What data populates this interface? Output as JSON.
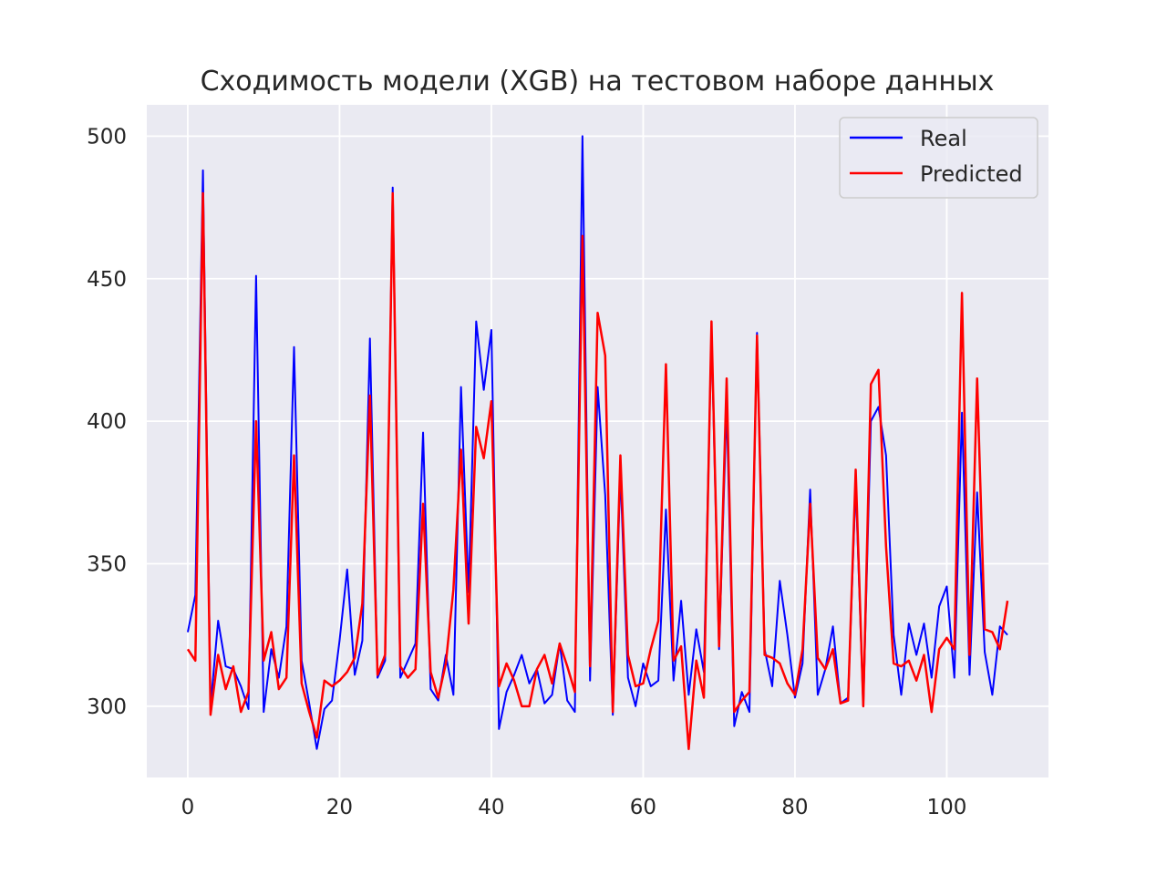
{
  "chart_data": {
    "type": "line",
    "title": "Сходимость модели (XGB) на тестовом наборе данных",
    "xlabel": "",
    "ylabel": "",
    "xlim": [
      -5.4,
      113.4
    ],
    "ylim": [
      275,
      511
    ],
    "xticks": [
      0,
      20,
      40,
      60,
      80,
      100
    ],
    "yticks": [
      300,
      350,
      400,
      450,
      500
    ],
    "grid": true,
    "legend_position": "top-right",
    "series": [
      {
        "name": "Real",
        "color": "#0000ff",
        "values": [
          326,
          339,
          488,
          300,
          330,
          314,
          313,
          307,
          299,
          451,
          298,
          320,
          310,
          328,
          426,
          316,
          301,
          285,
          299,
          302,
          323,
          348,
          311,
          323,
          429,
          310,
          316,
          482,
          310,
          316,
          322,
          396,
          306,
          302,
          318,
          304,
          412,
          340,
          435,
          411,
          432,
          292,
          305,
          311,
          318,
          308,
          313,
          301,
          304,
          322,
          302,
          298,
          500,
          309,
          412,
          374,
          297,
          382,
          310,
          300,
          315,
          307,
          309,
          369,
          309,
          337,
          304,
          327,
          312,
          432,
          320,
          406,
          293,
          305,
          298,
          431,
          320,
          307,
          344,
          325,
          303,
          315,
          376,
          304,
          313,
          328,
          301,
          303,
          378,
          300,
          400,
          405,
          388,
          325,
          304,
          329,
          318,
          329,
          310,
          335,
          342,
          310,
          403,
          311,
          375,
          319,
          304,
          328,
          325
        ]
      },
      {
        "name": "Predicted",
        "color": "#ff0000",
        "values": [
          320,
          316,
          480,
          297,
          318,
          306,
          314,
          298,
          305,
          400,
          316,
          326,
          306,
          310,
          388,
          308,
          298,
          289,
          309,
          307,
          309,
          312,
          317,
          336,
          409,
          311,
          318,
          480,
          314,
          310,
          313,
          371,
          312,
          303,
          315,
          341,
          390,
          329,
          398,
          387,
          407,
          307,
          315,
          309,
          300,
          300,
          313,
          318,
          308,
          322,
          314,
          305,
          465,
          314,
          438,
          423,
          298,
          388,
          318,
          307,
          308,
          320,
          330,
          420,
          316,
          321,
          285,
          316,
          303,
          435,
          321,
          415,
          298,
          302,
          305,
          430,
          318,
          317,
          315,
          308,
          304,
          320,
          371,
          317,
          313,
          320,
          301,
          302,
          383,
          300,
          413,
          418,
          356,
          315,
          314,
          316,
          309,
          318,
          298,
          320,
          324,
          320,
          445,
          318,
          415,
          327,
          326,
          320,
          337
        ]
      }
    ]
  }
}
